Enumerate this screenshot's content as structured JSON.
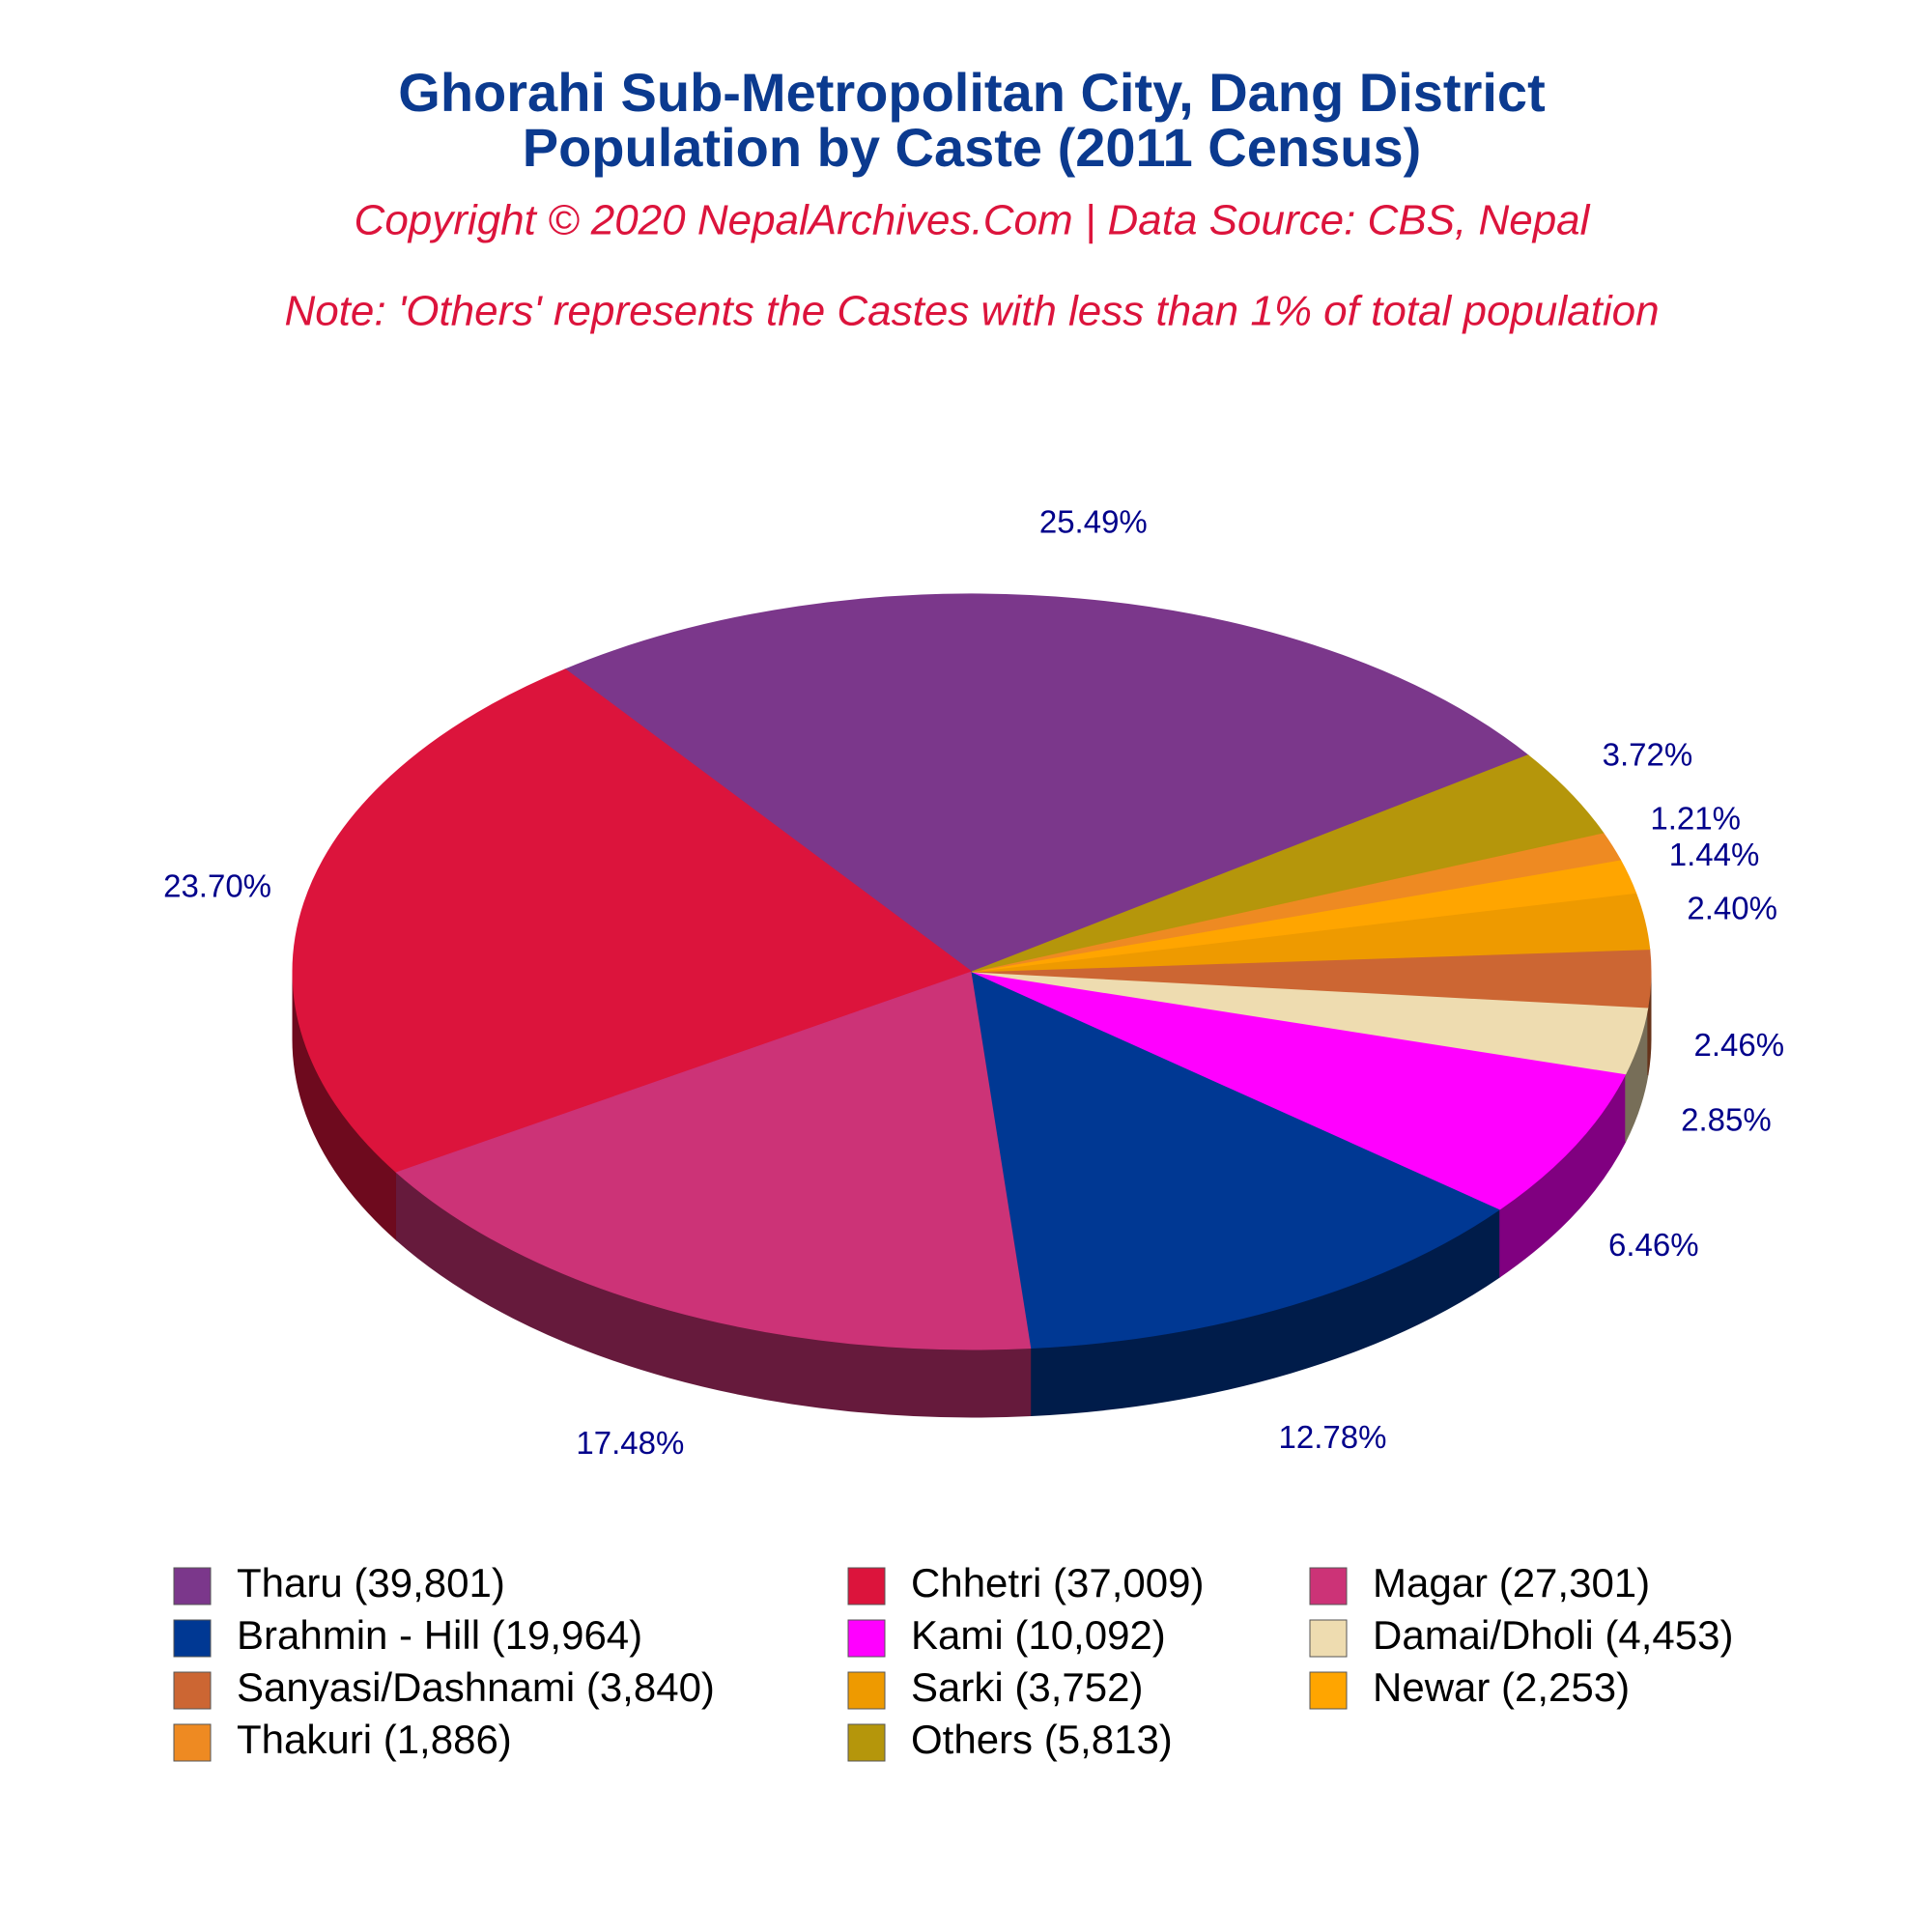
{
  "chart_data": {
    "type": "pie3d",
    "title": "Ghorahi Sub-Metropolitan City, Dang District",
    "subtitle": "Population by Caste (2011 Census)",
    "copyright": "Copyright © 2020 NepalArchives.Com | Data Source: CBS, Nepal",
    "note": "Note: 'Others' represents the Castes with less than 1% of total population",
    "categories": [
      "Tharu (39,801)",
      "Chhetri (37,009)",
      "Magar (27,301)",
      "Brahmin - Hill (19,964)",
      "Kami (10,092)",
      "Damai/Dholi (4,453)",
      "Sanyasi/Dashnami (3,840)",
      "Sarki (3,752)",
      "Newar (2,253)",
      "Thakuri (1,886)",
      "Others (5,813)"
    ],
    "values": [
      25.49,
      23.7,
      17.48,
      12.78,
      6.46,
      2.85,
      2.46,
      2.4,
      1.44,
      1.21,
      3.72
    ],
    "value_labels": [
      "25.49%",
      "23.70%",
      "17.48%",
      "12.78%",
      "6.46%",
      "2.85%",
      "2.46%",
      "2.40%",
      "1.44%",
      "1.21%",
      "3.72%"
    ],
    "colors": [
      "#7b378b",
      "#dc143c",
      "#cc3377",
      "#003893",
      "#ff00ff",
      "#eedcb0",
      "#cc6633",
      "#ee9a00",
      "#ffa500",
      "#ee8a22",
      "#b5960b"
    ]
  }
}
